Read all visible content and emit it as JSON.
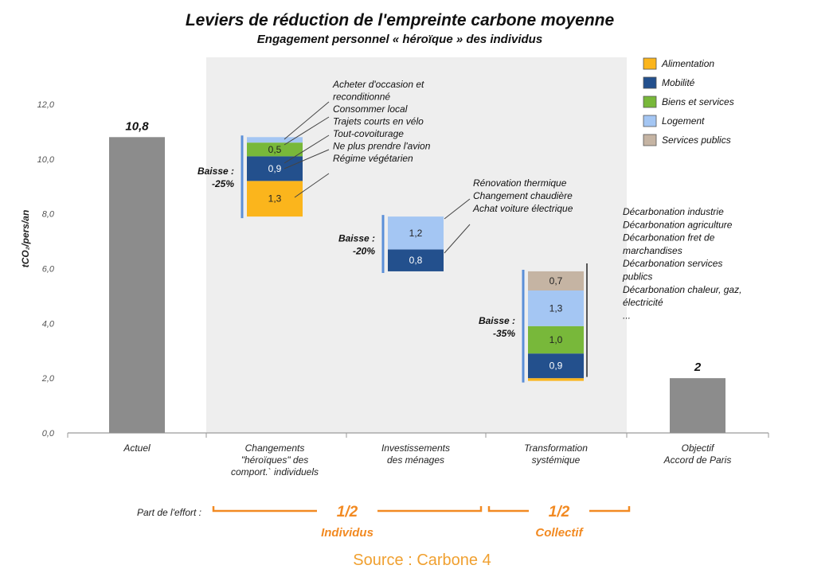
{
  "chart_data": {
    "type": "bar",
    "title": "Leviers de réduction de l'empreinte carbone moyenne",
    "subtitle": "Engagement personnel « héroïque » des individus",
    "ylabel": "tCO₂/pers/an",
    "ylim": [
      0,
      12
    ],
    "yticks": [
      "0,0",
      "2,0",
      "4,0",
      "6,0",
      "8,0",
      "10,0",
      "12,0"
    ],
    "categories": [
      "Actuel",
      "Changements \"héroïques\" des comport.` individuels",
      "Investissements des ménages",
      "Transformation systémique",
      "Objectif Accord de Paris"
    ],
    "totals": [
      {
        "category": 0,
        "value": 10.8,
        "label": "10,8",
        "color": "#8c8c8c"
      },
      {
        "category": 4,
        "value": 2.0,
        "label": "2",
        "color": "#8c8c8c"
      }
    ],
    "legend": [
      {
        "name": "Alimentation",
        "color": "#fbb51c"
      },
      {
        "name": "Mobilité",
        "color": "#23508d"
      },
      {
        "name": "Biens et services",
        "color": "#78b83a"
      },
      {
        "name": "Logement",
        "color": "#a4c6f3"
      },
      {
        "name": "Services publics",
        "color": "#c5b4a3"
      }
    ],
    "legend_position": "top-right",
    "waterfall": [
      {
        "category": 1,
        "baisse": "Baisse :",
        "pct": "-25%",
        "segments": [
          {
            "series": "Alimentation",
            "value": 1.3,
            "label": "1,3"
          },
          {
            "series": "Mobilité",
            "value": 0.9,
            "label": "0,9"
          },
          {
            "series": "Biens et services",
            "value": 0.5,
            "label": "0,5"
          },
          {
            "series": "Logement",
            "value": 0.2,
            "label": ""
          }
        ],
        "annotations": [
          "Acheter d'occasion et",
          "reconditionné",
          "Consommer local",
          "Trajets courts en vélo",
          "Tout-covoiturage",
          "Ne plus prendre l'avion",
          "Régime végétarien"
        ]
      },
      {
        "category": 2,
        "baisse": "Baisse :",
        "pct": "-20%",
        "segments": [
          {
            "series": "Mobilité",
            "value": 0.8,
            "label": "0,8"
          },
          {
            "series": "Logement",
            "value": 1.2,
            "label": "1,2"
          }
        ],
        "annotations": [
          "Rénovation thermique",
          "Changement chaudière",
          "Achat voiture électrique"
        ]
      },
      {
        "category": 3,
        "baisse": "Baisse :",
        "pct": "-35%",
        "segments": [
          {
            "series": "Alimentation",
            "value": 0.1,
            "label": ""
          },
          {
            "series": "Mobilité",
            "value": 0.9,
            "label": "0,9"
          },
          {
            "series": "Biens et services",
            "value": 1.0,
            "label": "1,0"
          },
          {
            "series": "Logement",
            "value": 1.3,
            "label": "1,3"
          },
          {
            "series": "Services publics",
            "value": 0.7,
            "label": "0,7"
          }
        ],
        "annotations": [
          "Décarbonation industrie",
          "Décarbonation agriculture",
          "Décarbonation fret de",
          "marchandises",
          "Décarbonation services",
          "publics",
          "Décarbonation chaleur, gaz,",
          "électricité",
          "..."
        ]
      }
    ],
    "effort": {
      "label": "Part de l'effort :",
      "groups": [
        {
          "fraction": "1/2",
          "name": "Individus"
        },
        {
          "fraction": "1/2",
          "name": "Collectif"
        }
      ]
    }
  },
  "source": "Source : Carbone 4",
  "colors": {
    "shade": "#eeeeee",
    "total_bar": "#8c8c8c",
    "bracket_blue": "#5b8fd8",
    "bracket_dark": "#555555",
    "effort_orange": "#f28a22"
  }
}
